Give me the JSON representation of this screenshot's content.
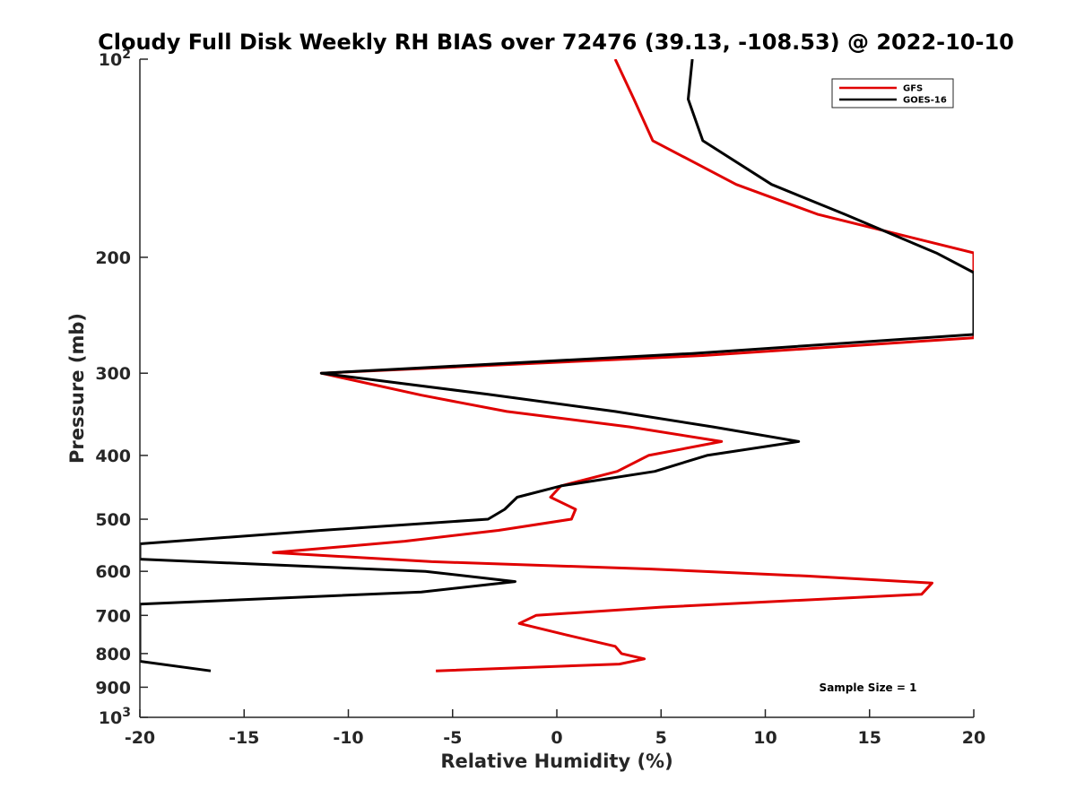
{
  "chart_data": {
    "type": "line",
    "title": "Cloudy Full Disk Weekly RH BIAS over 72476 (39.13, -108.53) @ 2022-10-10",
    "xlabel": "Relative Humidity (%)",
    "ylabel": "Pressure (mb)",
    "xlim": [
      -20,
      20
    ],
    "ylim": [
      100,
      1000
    ],
    "y_scale": "log",
    "y_reversed": true,
    "x_ticks": [
      "-20",
      "-15",
      "-10",
      "-5",
      "0",
      "5",
      "10",
      "15",
      "20"
    ],
    "y_ticks": [
      {
        "value": 100,
        "base": "10",
        "exp": "2"
      },
      {
        "value": 200,
        "label": "200"
      },
      {
        "value": 300,
        "label": "300"
      },
      {
        "value": 400,
        "label": "400"
      },
      {
        "value": 500,
        "label": "500"
      },
      {
        "value": 600,
        "label": "600"
      },
      {
        "value": 700,
        "label": "700"
      },
      {
        "value": 800,
        "label": "800"
      },
      {
        "value": 900,
        "label": "900"
      },
      {
        "value": 1000,
        "base": "10",
        "exp": "3"
      }
    ],
    "legend_position": "top-right",
    "annotation": "Sample Size = 1",
    "series": [
      {
        "name": "GFS",
        "color": "#e00000",
        "points": [
          [
            2.8,
            100
          ],
          [
            3.7,
            115
          ],
          [
            4.6,
            133
          ],
          [
            8.6,
            155
          ],
          [
            12.5,
            172
          ],
          [
            20,
            197
          ],
          [
            20,
            265
          ],
          [
            7.0,
            282
          ],
          [
            -11.3,
            300
          ],
          [
            -6.5,
            324
          ],
          [
            -2.4,
            343
          ],
          [
            3.5,
            362
          ],
          [
            7.9,
            381
          ],
          [
            4.4,
            400
          ],
          [
            2.9,
            423
          ],
          [
            0.2,
            445
          ],
          [
            -0.3,
            463
          ],
          [
            0.9,
            483
          ],
          [
            0.7,
            500
          ],
          [
            -2.8,
            520
          ],
          [
            -7.3,
            540
          ],
          [
            -13.6,
            562
          ],
          [
            -6.0,
            580
          ],
          [
            4.4,
            595
          ],
          [
            12.0,
            610
          ],
          [
            18.0,
            625
          ],
          [
            17.5,
            650
          ],
          [
            5.0,
            680
          ],
          [
            -1.0,
            700
          ],
          [
            -1.8,
            720
          ],
          [
            0.5,
            750
          ],
          [
            2.8,
            780
          ],
          [
            3.1,
            800
          ],
          [
            4.2,
            815
          ],
          [
            3.0,
            830
          ],
          [
            -5.8,
            850
          ]
        ]
      },
      {
        "name": "GOES-16",
        "color": "#000000",
        "points": [
          [
            6.5,
            100
          ],
          [
            6.3,
            115
          ],
          [
            7.0,
            133
          ],
          [
            10.3,
            155
          ],
          [
            13.8,
            172
          ],
          [
            18.2,
            197
          ],
          [
            20,
            211
          ],
          [
            20,
            262
          ],
          [
            6.5,
            280
          ],
          [
            -11.3,
            300
          ],
          [
            -3.3,
            323
          ],
          [
            2.8,
            343
          ],
          [
            7.5,
            362
          ],
          [
            11.6,
            381
          ],
          [
            7.2,
            400
          ],
          [
            4.7,
            423
          ],
          [
            0.2,
            445
          ],
          [
            -1.9,
            463
          ],
          [
            -2.5,
            483
          ],
          [
            -3.3,
            500
          ],
          [
            -11.3,
            520
          ],
          [
            -20,
            545
          ],
          [
            -20,
            575
          ],
          [
            -6.3,
            600
          ],
          [
            -2.0,
            622
          ],
          [
            -6.5,
            645
          ],
          [
            -20,
            673
          ],
          [
            -20,
            822
          ],
          [
            -16.6,
            850
          ]
        ]
      }
    ]
  }
}
